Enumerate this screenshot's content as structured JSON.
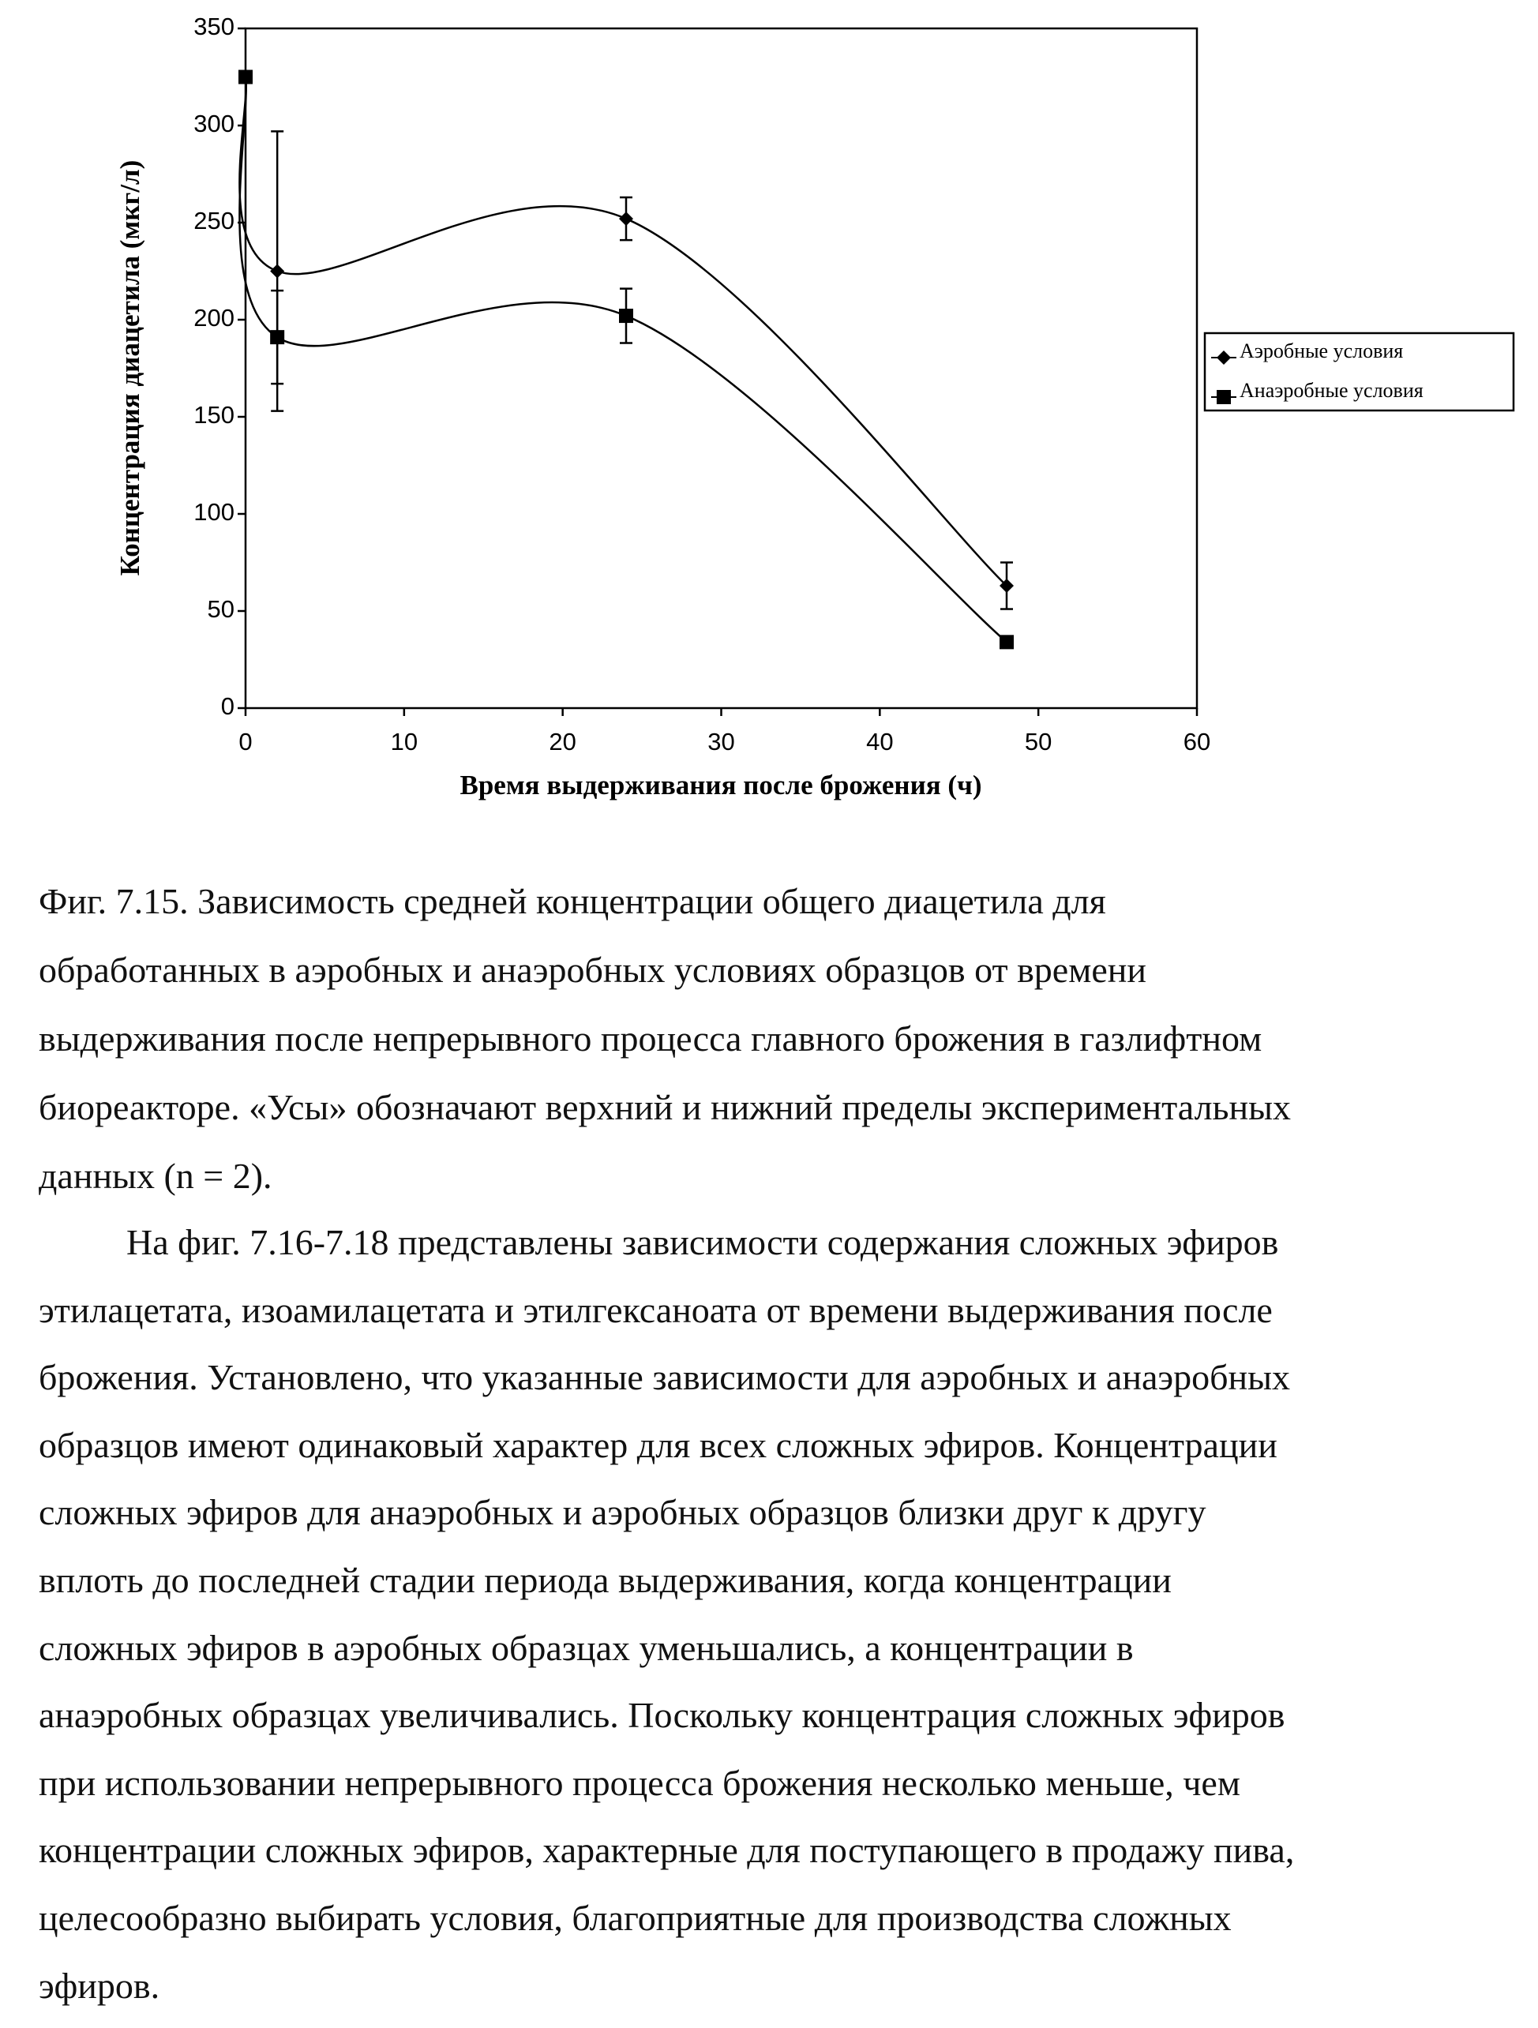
{
  "chart_data": {
    "type": "line",
    "xlabel": "Время выдерживания после брожения (ч)",
    "ylabel": "Концентрация диацетила (мкг/л)",
    "x": [
      0,
      2,
      24,
      48
    ],
    "series": [
      {
        "name": "Аэробные условия",
        "color": "#000000",
        "marker": "diamond",
        "values": [
          325,
          225,
          252,
          63
        ],
        "errors": [
          0,
          72,
          11,
          12
        ]
      },
      {
        "name": "Анаэробные условия",
        "color": "#000000",
        "marker": "square",
        "values": [
          325,
          191,
          202,
          34
        ],
        "errors": [
          0,
          24,
          14,
          0
        ]
      }
    ],
    "xlim": [
      0,
      60
    ],
    "xticks": [
      0,
      10,
      20,
      30,
      40,
      50,
      60
    ],
    "ylim": [
      0,
      350
    ],
    "yticks": [
      0,
      50,
      100,
      150,
      200,
      250,
      300,
      350
    ],
    "smooth": true,
    "legend": "right"
  },
  "caption": [
    "Фиг. 7.15. Зависимость средней концентрации общего диацетила для",
    "обработанных в аэробных и анаэробных условиях образцов от времени",
    "выдерживания после непрерывного процесса главного брожения в газлифтном",
    "биореакторе. «Усы» обозначают верхний и нижний пределы экспериментальных",
    "данных (n = 2)."
  ],
  "paragraph": [
    "На фиг. 7.16-7.18 представлены зависимости содержания сложных эфиров",
    "этилацетата, изоамилацетата и этилгексаноата от времени выдерживания после",
    "брожения. Установлено, что указанные зависимости для аэробных и анаэробных",
    "образцов имеют одинаковый характер для всех сложных эфиров. Концентрации",
    "сложных эфиров для анаэробных и аэробных образцов близки друг к другу",
    "вплоть до последней стадии периода выдерживания, когда концентрации",
    "сложных эфиров в аэробных образцах уменьшались, а концентрации в",
    "анаэробных образцах увеличивались. Поскольку концентрация сложных эфиров",
    "при использовании непрерывного процесса брожения несколько меньше, чем",
    "концентрации сложных эфиров, характерные для поступающего в продажу пива,",
    "целесообразно выбирать условия, благоприятные для производства сложных",
    "эфиров."
  ]
}
